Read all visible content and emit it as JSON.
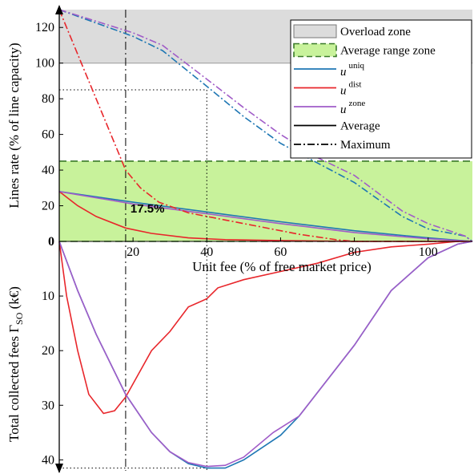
{
  "chart_data": {
    "type": "line",
    "x_label": "Unit fee (% of free market price)",
    "x_ticks": [
      20,
      40,
      60,
      80,
      100
    ],
    "xlim": [
      0,
      112
    ],
    "top_panel": {
      "ylabel": "Lines rate (% of line capacity)",
      "ylim": [
        0,
        130
      ],
      "y_ticks": [
        0,
        20,
        40,
        60,
        80,
        100,
        120
      ],
      "overload_zone": [
        100,
        130
      ],
      "average_range_zone": [
        0,
        45
      ],
      "series": [
        {
          "name": "u_uniq_avg",
          "color": "#1f77b4",
          "style": "solid",
          "x": [
            0,
            20,
            40,
            60,
            80,
            100,
            112
          ],
          "y": [
            28,
            22,
            16.5,
            11,
            6,
            2,
            0
          ]
        },
        {
          "name": "u_dist_avg",
          "color": "#e8262b",
          "style": "solid",
          "x": [
            0,
            5,
            10,
            18,
            25,
            35,
            45,
            60,
            80,
            112
          ],
          "y": [
            28,
            20,
            14,
            7.5,
            4.5,
            2,
            1,
            0.5,
            0,
            0
          ]
        },
        {
          "name": "u_zone_avg",
          "color": "#a05cc8",
          "style": "solid",
          "x": [
            0,
            20,
            40,
            60,
            80,
            100,
            112
          ],
          "y": [
            28,
            21,
            15.5,
            10,
            5,
            1.5,
            0
          ]
        },
        {
          "name": "u_uniq_max",
          "color": "#1f77b4",
          "style": "dashdot",
          "x": [
            0,
            20,
            28,
            40,
            50,
            60,
            70,
            80,
            93,
            100,
            110,
            112
          ],
          "y": [
            130,
            115,
            107,
            87,
            70,
            55,
            44,
            33,
            14,
            7,
            3,
            0
          ]
        },
        {
          "name": "u_dist_max",
          "color": "#e8262b",
          "style": "dashdot",
          "x": [
            0,
            5,
            10,
            14,
            18,
            22,
            27,
            35,
            45,
            55,
            65,
            75,
            80,
            112
          ],
          "y": [
            130,
            105,
            80,
            60,
            40,
            30,
            22,
            16,
            12,
            8,
            4,
            1,
            0,
            0
          ]
        },
        {
          "name": "u_zone_max",
          "color": "#a05cc8",
          "style": "dashdot",
          "x": [
            0,
            20,
            28,
            40,
            50,
            60,
            70,
            80,
            93,
            100,
            110,
            112
          ],
          "y": [
            130,
            117,
            110,
            91,
            75,
            60,
            47,
            37,
            17,
            10,
            3,
            0
          ]
        }
      ],
      "annotation": {
        "text": "17.5%",
        "x": 18,
        "y": 10
      }
    },
    "bottom_panel": {
      "ylabel": "Total collected fees Γ_SO (k€)",
      "ylim": [
        0,
        42
      ],
      "y_ticks": [
        0,
        10,
        20,
        30,
        40
      ],
      "inverted": true,
      "series": [
        {
          "name": "u_uniq",
          "color": "#1f77b4",
          "x": [
            0,
            5,
            10,
            18,
            25,
            30,
            35,
            40,
            45,
            50,
            60,
            65,
            80,
            90,
            100,
            108,
            112
          ],
          "y": [
            0,
            9,
            17,
            28,
            35,
            38.5,
            40.7,
            41.5,
            41.5,
            40,
            35.5,
            32,
            19,
            9,
            3,
            0.5,
            0
          ]
        },
        {
          "name": "u_dist",
          "color": "#e8262b",
          "x": [
            0,
            2,
            5,
            8,
            12,
            15,
            18,
            25,
            30,
            35,
            40,
            43,
            50,
            60,
            70,
            80,
            90,
            100,
            108,
            112
          ],
          "y": [
            0,
            10,
            20,
            28,
            31.5,
            31,
            28.5,
            20,
            16.5,
            12,
            10.5,
            8.5,
            7,
            5.5,
            4,
            2,
            1,
            0.5,
            0,
            0
          ]
        },
        {
          "name": "u_zone",
          "color": "#a05cc8",
          "x": [
            0,
            5,
            10,
            18,
            25,
            30,
            35,
            40,
            45,
            50,
            58,
            65,
            80,
            90,
            100,
            108,
            112
          ],
          "y": [
            0,
            9,
            17,
            28,
            35,
            38.5,
            40.5,
            41.2,
            41,
            39.5,
            35,
            32,
            19,
            9,
            3,
            0.5,
            0
          ]
        }
      ]
    },
    "reference_lines": {
      "dashdot_vertical_x": 18,
      "dotted_vertical_x": 40,
      "dotted_top_y": 85,
      "dotted_bottom_y": 41.5
    },
    "legend": {
      "position": "top-right",
      "entries": [
        {
          "label": "Overload zone",
          "swatch": "gray-box"
        },
        {
          "label": "Average range zone",
          "swatch": "green-box"
        },
        {
          "label_base": "u",
          "label_sup": "uniq",
          "color": "#1f77b4",
          "line": "solid"
        },
        {
          "label_base": "u",
          "label_sup": "dist",
          "color": "#e8262b",
          "line": "solid"
        },
        {
          "label_base": "u",
          "label_sup": "zone",
          "color": "#a05cc8",
          "line": "solid"
        },
        {
          "label": "Average",
          "color": "#000000",
          "line": "solid"
        },
        {
          "label": "Maximum",
          "color": "#000000",
          "line": "dashdot"
        }
      ]
    },
    "colors": {
      "overload_fill": "#dcdcdc",
      "average_fill": "#c8f29b",
      "average_border": "#3a7a2a"
    }
  }
}
